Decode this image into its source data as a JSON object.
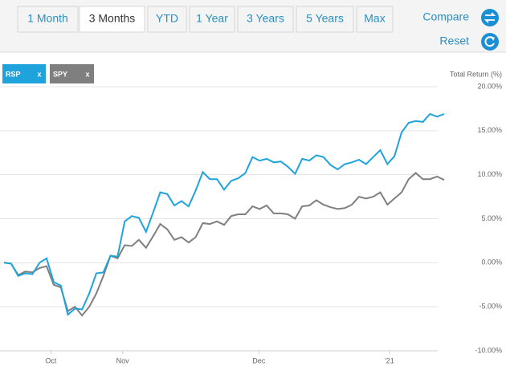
{
  "toolbar": {
    "tabs": [
      "1 Month",
      "3 Months",
      "YTD",
      "1 Year",
      "3 Years",
      "5 Years",
      "Max"
    ],
    "active": 1,
    "compare": "Compare",
    "reset": "Reset"
  },
  "legend_close": "x",
  "chart_data": {
    "type": "line",
    "axis_title": "Total Return (%)",
    "x": [
      0,
      1,
      2,
      3,
      4,
      5,
      6,
      7,
      8,
      9,
      10,
      11,
      12,
      13,
      14,
      15,
      16,
      17,
      18,
      19,
      20,
      21,
      22,
      23,
      24,
      25,
      26,
      27,
      28,
      29,
      30,
      31,
      32,
      33,
      34,
      35,
      36,
      37,
      38,
      39,
      40,
      41,
      42,
      43,
      44,
      45,
      46,
      47,
      48,
      49,
      50,
      51,
      52,
      53,
      54,
      55,
      56,
      57,
      58,
      59,
      60,
      61,
      62
    ],
    "xlim": [
      0,
      62
    ],
    "xticks": [
      {
        "value": 6.6,
        "label": "Oct"
      },
      {
        "value": 16.7,
        "label": "Nov"
      },
      {
        "value": 35.9,
        "label": "Dec"
      },
      {
        "value": 54.3,
        "label": "'21"
      }
    ],
    "ylim": [
      -10,
      20
    ],
    "yticks": [
      {
        "value": 20,
        "label": "20.00%"
      },
      {
        "value": 15,
        "label": "15.00%"
      },
      {
        "value": 10,
        "label": "10.00%"
      },
      {
        "value": 5,
        "label": "5.00%"
      },
      {
        "value": 0,
        "label": "0.00%"
      },
      {
        "value": -5,
        "label": "-5.00%"
      },
      {
        "value": -10,
        "label": "-10.00%"
      }
    ],
    "grid": true,
    "series": [
      {
        "name": "RSP",
        "color": "#1fa3dc",
        "values": [
          0,
          -0.1,
          -1.5,
          -1.2,
          -1.3,
          0,
          0.5,
          -2.2,
          -2.6,
          -5.9,
          -5.2,
          -5.3,
          -3.5,
          -1.2,
          -1.1,
          0.8,
          0.7,
          4.7,
          5.3,
          5.1,
          3.5,
          5.7,
          8.0,
          7.8,
          6.5,
          7.0,
          6.4,
          8.2,
          10.3,
          9.5,
          9.5,
          8.3,
          9.3,
          9.6,
          10.2,
          12.0,
          11.6,
          11.8,
          11.4,
          11.5,
          10.9,
          10.1,
          11.8,
          11.6,
          12.2,
          12.0,
          11.1,
          10.6,
          11.2,
          11.4,
          11.7,
          11.2,
          12.0,
          12.8,
          11.2,
          12.1,
          14.8,
          15.9,
          16.1,
          16.0,
          16.9,
          16.6,
          16.9
        ]
      },
      {
        "name": "SPY",
        "color": "#7f7f7f",
        "values": [
          0,
          -0.1,
          -1.4,
          -1.0,
          -1.1,
          -0.6,
          -0.4,
          -2.5,
          -2.8,
          -5.5,
          -5.0,
          -6.0,
          -5.0,
          -3.5,
          -1.5,
          0.8,
          0.5,
          2.0,
          1.9,
          2.6,
          1.7,
          3.0,
          4.4,
          3.8,
          2.6,
          2.9,
          2.3,
          2.9,
          4.5,
          4.4,
          4.7,
          4.3,
          5.3,
          5.5,
          5.5,
          6.4,
          6.1,
          6.5,
          5.6,
          5.6,
          5.5,
          5.0,
          6.4,
          6.5,
          7.1,
          6.6,
          6.3,
          6.1,
          6.2,
          6.6,
          7.5,
          7.3,
          7.5,
          8.0,
          6.6,
          7.3,
          8.0,
          9.5,
          10.2,
          9.5,
          9.5,
          9.8,
          9.4
        ]
      }
    ]
  }
}
